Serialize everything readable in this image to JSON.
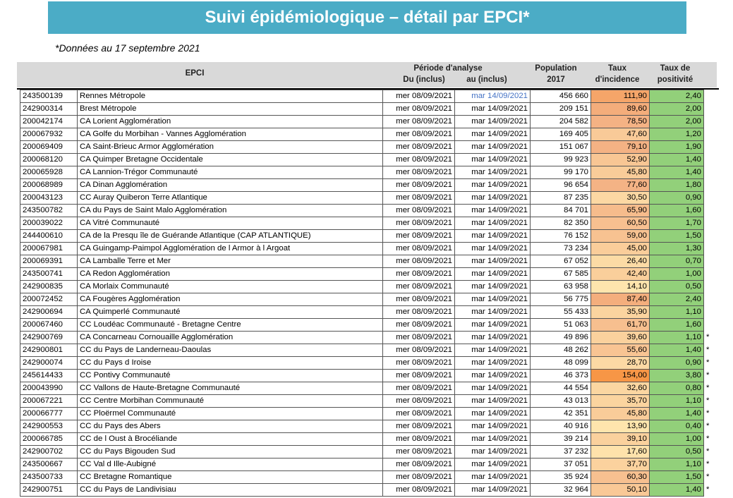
{
  "title": "Suivi épidémiologique – détail par EPCI*",
  "subtitle": "*Données au 17 septembre 2021",
  "headers": {
    "epci": "EPCI",
    "periode": "Période d'analyse",
    "du": "Du (inclus)",
    "au": "au (inclus)",
    "population": "Population",
    "population_year": "2017",
    "taux_incidence_1": "Taux",
    "taux_incidence_2": "d'incidence",
    "taux_positivite_1": "Taux de",
    "taux_positivite_2": "positivité"
  },
  "colors": {
    "banner": "#4bacc6",
    "header_bg": "#d9d9d9",
    "positivite": "#92d07a",
    "incidence_scale": [
      "#ffe8b0",
      "#f4b183",
      "#f79646"
    ]
  },
  "rows": [
    {
      "code": "243500139",
      "name": "Rennes Métropole",
      "du": "mer 08/09/2021",
      "au": "mar 14/09/2021",
      "pop": "456 660",
      "inc": "111,90",
      "pos": "2,40",
      "star": ""
    },
    {
      "code": "242900314",
      "name": "Brest Métropole",
      "du": "mer 08/09/2021",
      "au": "mar 14/09/2021",
      "pop": "209 151",
      "inc": "89,60",
      "pos": "2,00",
      "star": ""
    },
    {
      "code": "200042174",
      "name": "CA Lorient Agglomération",
      "du": "mer 08/09/2021",
      "au": "mar 14/09/2021",
      "pop": "204 582",
      "inc": "78,50",
      "pos": "2,00",
      "star": ""
    },
    {
      "code": "200067932",
      "name": "CA Golfe du Morbihan - Vannes Agglomération",
      "du": "mer 08/09/2021",
      "au": "mar 14/09/2021",
      "pop": "169 405",
      "inc": "47,60",
      "pos": "1,20",
      "star": ""
    },
    {
      "code": "200069409",
      "name": "CA Saint-Brieuc Armor Agglomération",
      "du": "mer 08/09/2021",
      "au": "mar 14/09/2021",
      "pop": "151 067",
      "inc": "79,10",
      "pos": "1,90",
      "star": ""
    },
    {
      "code": "200068120",
      "name": "CA Quimper Bretagne Occidentale",
      "du": "mer 08/09/2021",
      "au": "mar 14/09/2021",
      "pop": "99 923",
      "inc": "52,90",
      "pos": "1,40",
      "star": ""
    },
    {
      "code": "200065928",
      "name": "CA Lannion-Trégor Communauté",
      "du": "mer 08/09/2021",
      "au": "mar 14/09/2021",
      "pop": "99 170",
      "inc": "45,80",
      "pos": "1,40",
      "star": ""
    },
    {
      "code": "200068989",
      "name": "CA Dinan Agglomération",
      "du": "mer 08/09/2021",
      "au": "mar 14/09/2021",
      "pop": "96 654",
      "inc": "77,60",
      "pos": "1,80",
      "star": ""
    },
    {
      "code": "200043123",
      "name": "CC Auray Quiberon Terre Atlantique",
      "du": "mer 08/09/2021",
      "au": "mar 14/09/2021",
      "pop": "87 235",
      "inc": "30,50",
      "pos": "0,90",
      "star": ""
    },
    {
      "code": "243500782",
      "name": "CA du Pays de Saint Malo Agglomération",
      "du": "mer 08/09/2021",
      "au": "mar 14/09/2021",
      "pop": "84 701",
      "inc": "65,90",
      "pos": "1,60",
      "star": ""
    },
    {
      "code": "200039022",
      "name": "CA Vitré Communauté",
      "du": "mer 08/09/2021",
      "au": "mar 14/09/2021",
      "pop": "82 350",
      "inc": "60,50",
      "pos": "1,70",
      "star": ""
    },
    {
      "code": "244400610",
      "name": "CA de la Presqu île de Guérande Atlantique (CAP ATLANTIQUE)",
      "du": "mer 08/09/2021",
      "au": "mar 14/09/2021",
      "pop": "76 152",
      "inc": "59,00",
      "pos": "1,50",
      "star": ""
    },
    {
      "code": "200067981",
      "name": "CA Guingamp-Paimpol Agglomération de l Armor à l Argoat",
      "du": "mer 08/09/2021",
      "au": "mar 14/09/2021",
      "pop": "73 234",
      "inc": "45,00",
      "pos": "1,30",
      "star": ""
    },
    {
      "code": "200069391",
      "name": "CA Lamballe Terre et Mer",
      "du": "mer 08/09/2021",
      "au": "mar 14/09/2021",
      "pop": "67 052",
      "inc": "26,40",
      "pos": "0,70",
      "star": ""
    },
    {
      "code": "243500741",
      "name": "CA Redon Agglomération",
      "du": "mer 08/09/2021",
      "au": "mar 14/09/2021",
      "pop": "67 585",
      "inc": "42,40",
      "pos": "1,00",
      "star": ""
    },
    {
      "code": "242900835",
      "name": "CA Morlaix Communauté",
      "du": "mer 08/09/2021",
      "au": "mar 14/09/2021",
      "pop": "63 958",
      "inc": "14,10",
      "pos": "0,50",
      "star": ""
    },
    {
      "code": "200072452",
      "name": "CA Fougères Agglomération",
      "du": "mer 08/09/2021",
      "au": "mar 14/09/2021",
      "pop": "56 775",
      "inc": "87,40",
      "pos": "2,40",
      "star": ""
    },
    {
      "code": "242900694",
      "name": "CA Quimperlé Communauté",
      "du": "mer 08/09/2021",
      "au": "mar 14/09/2021",
      "pop": "55 433",
      "inc": "35,90",
      "pos": "1,10",
      "star": ""
    },
    {
      "code": "200067460",
      "name": "CC Loudéac Communauté - Bretagne Centre",
      "du": "mer 08/09/2021",
      "au": "mar 14/09/2021",
      "pop": "51 063",
      "inc": "61,70",
      "pos": "1,60",
      "star": ""
    },
    {
      "code": "242900769",
      "name": "CA Concarneau Cornouaille Agglomération",
      "du": "mer 08/09/2021",
      "au": "mar 14/09/2021",
      "pop": "49 896",
      "inc": "39,60",
      "pos": "1,10",
      "star": "*"
    },
    {
      "code": "242900801",
      "name": "CC du Pays de Landerneau-Daoulas",
      "du": "mer 08/09/2021",
      "au": "mar 14/09/2021",
      "pop": "48 262",
      "inc": "55,60",
      "pos": "1,40",
      "star": "*"
    },
    {
      "code": "242900074",
      "name": "CC du Pays d Iroise",
      "du": "mer 08/09/2021",
      "au": "mar 14/09/2021",
      "pop": "48 099",
      "inc": "28,70",
      "pos": "0,90",
      "star": "*"
    },
    {
      "code": "245614433",
      "name": "CC Pontivy Communauté",
      "du": "mer 08/09/2021",
      "au": "mar 14/09/2021",
      "pop": "46 373",
      "inc": "154,00",
      "pos": "3,80",
      "star": "*"
    },
    {
      "code": "200043990",
      "name": "CC Vallons de Haute-Bretagne Communauté",
      "du": "mer 08/09/2021",
      "au": "mar 14/09/2021",
      "pop": "44 554",
      "inc": "32,60",
      "pos": "0,80",
      "star": "*"
    },
    {
      "code": "200067221",
      "name": "CC Centre Morbihan Communauté",
      "du": "mer 08/09/2021",
      "au": "mar 14/09/2021",
      "pop": "43 013",
      "inc": "35,70",
      "pos": "1,10",
      "star": "*"
    },
    {
      "code": "200066777",
      "name": "CC Ploërmel Communauté",
      "du": "mer 08/09/2021",
      "au": "mar 14/09/2021",
      "pop": "42 351",
      "inc": "45,80",
      "pos": "1,40",
      "star": "*"
    },
    {
      "code": "242900553",
      "name": "CC du Pays des Abers",
      "du": "mer 08/09/2021",
      "au": "mar 14/09/2021",
      "pop": "40 916",
      "inc": "13,90",
      "pos": "0,40",
      "star": "*"
    },
    {
      "code": "200066785",
      "name": "CC de l Oust à Brocéliande",
      "du": "mer 08/09/2021",
      "au": "mar 14/09/2021",
      "pop": "39 214",
      "inc": "39,10",
      "pos": "1,00",
      "star": "*"
    },
    {
      "code": "242900702",
      "name": "CC du Pays Bigouden Sud",
      "du": "mer 08/09/2021",
      "au": "mar 14/09/2021",
      "pop": "37 232",
      "inc": "17,60",
      "pos": "0,50",
      "star": "*"
    },
    {
      "code": "243500667",
      "name": "CC Val d Ille-Aubigné",
      "du": "mer 08/09/2021",
      "au": "mar 14/09/2021",
      "pop": "37 051",
      "inc": "37,70",
      "pos": "1,10",
      "star": "*"
    },
    {
      "code": "243500733",
      "name": "CC Bretagne Romantique",
      "du": "mer 08/09/2021",
      "au": "mar 14/09/2021",
      "pop": "35 924",
      "inc": "60,30",
      "pos": "1,50",
      "star": "*"
    },
    {
      "code": "242900751",
      "name": "CC du Pays de Landivisiau",
      "du": "mer 08/09/2021",
      "au": "mar 14/09/2021",
      "pop": "32 964",
      "inc": "50,10",
      "pos": "1,40",
      "star": "*"
    }
  ]
}
